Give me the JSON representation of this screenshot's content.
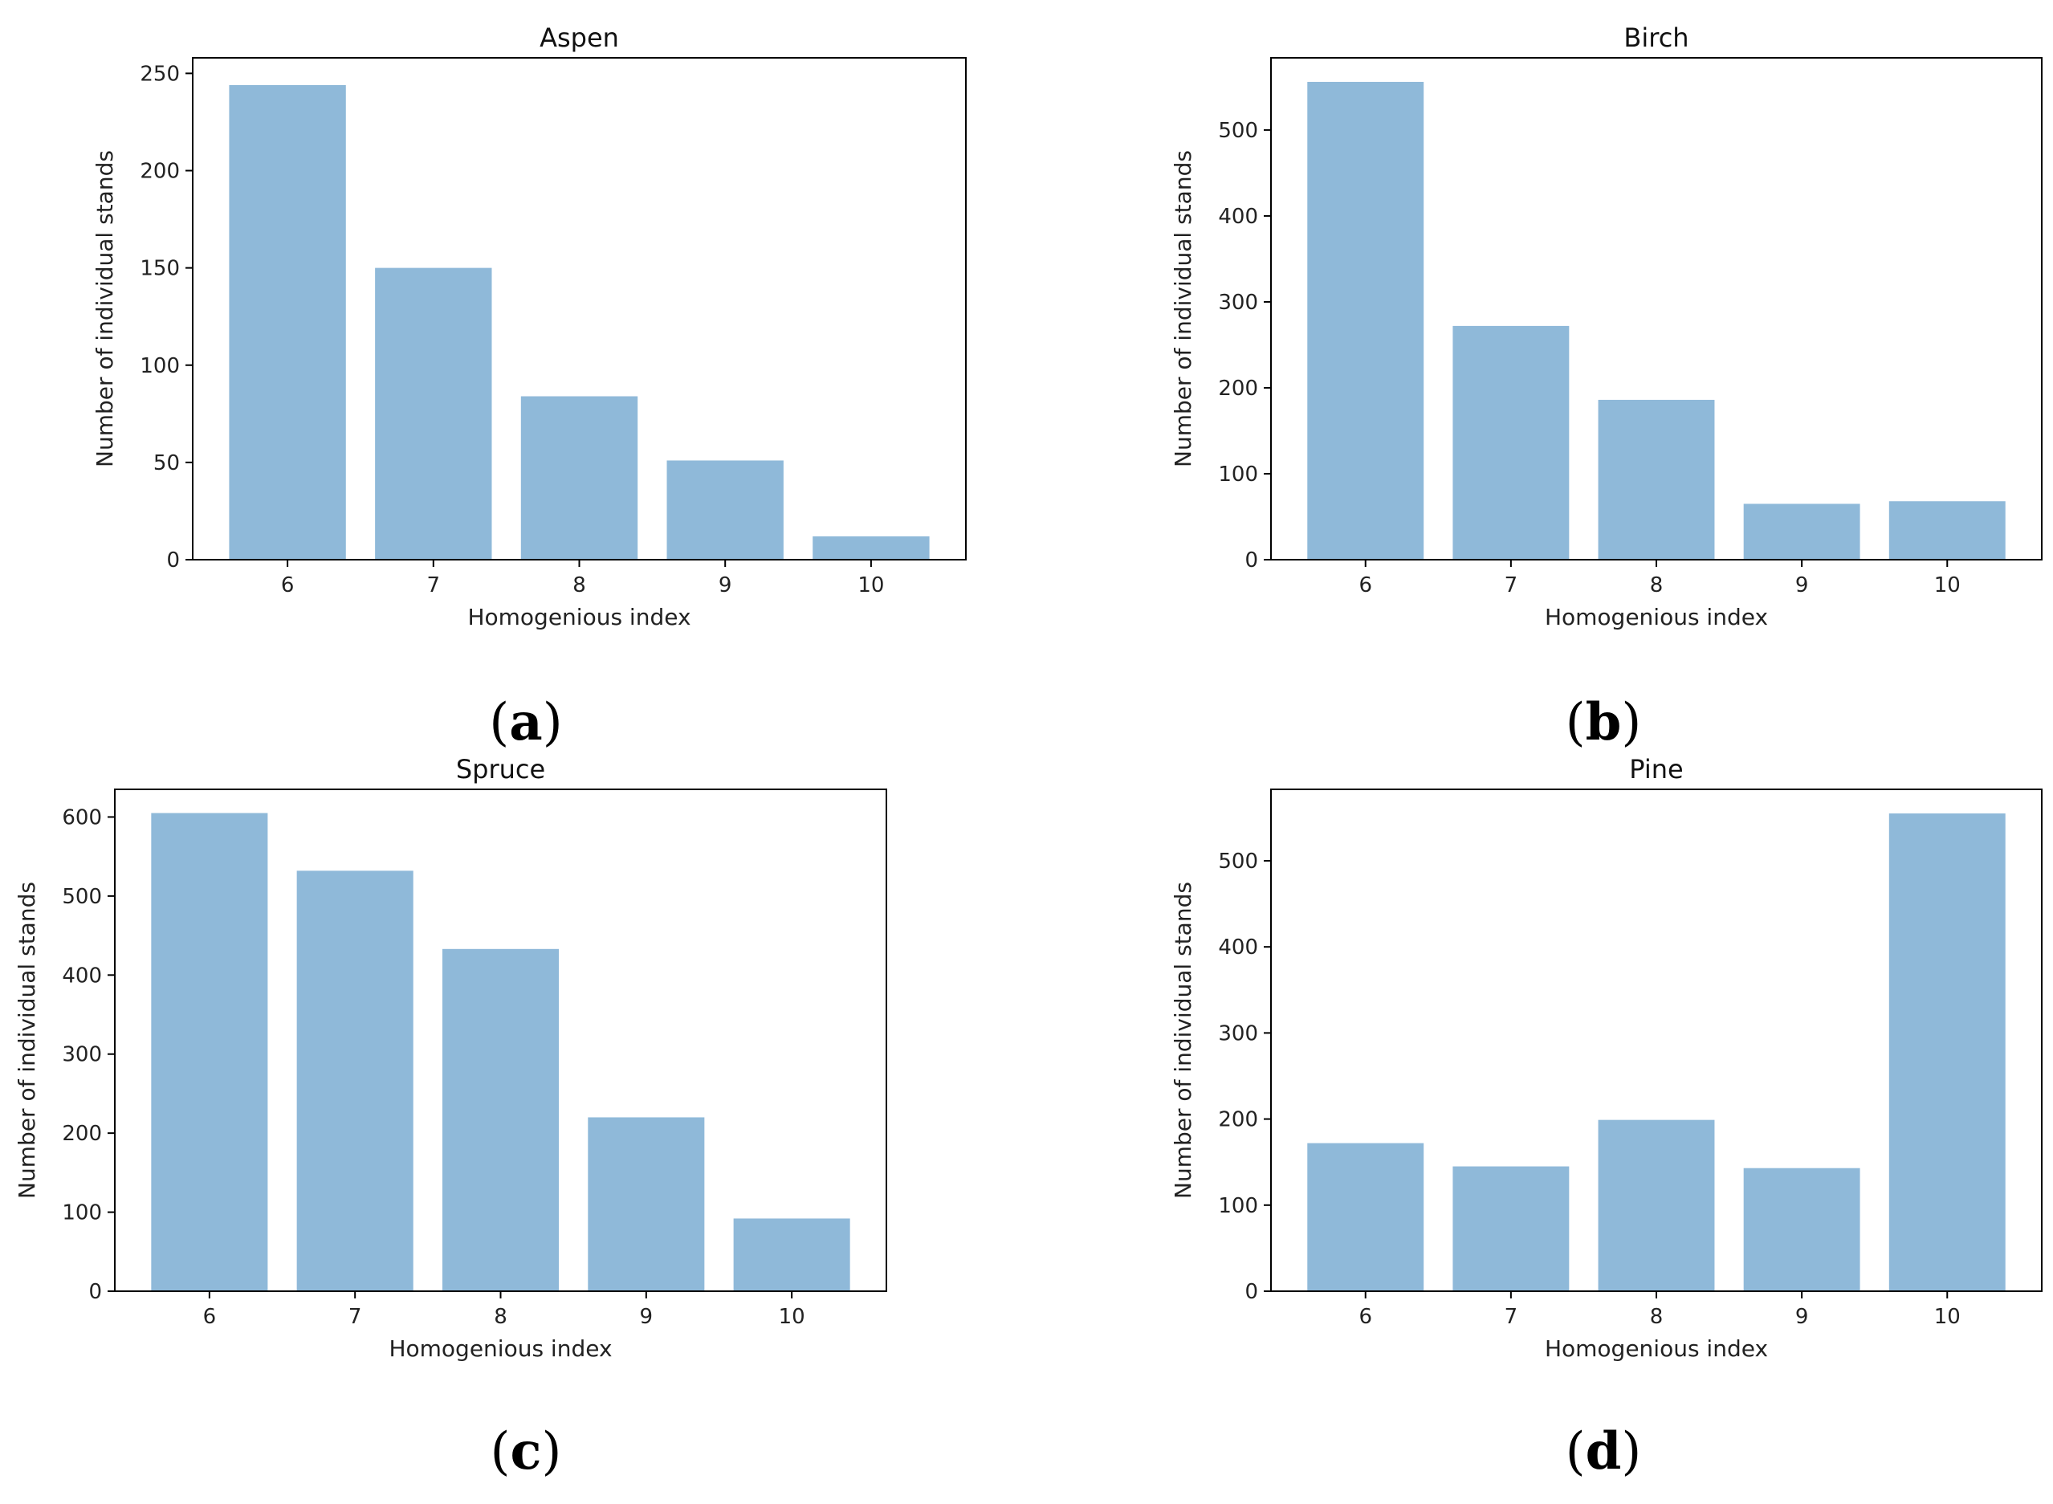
{
  "chart_data": [
    {
      "type": "bar",
      "title": "Aspen",
      "xlabel": "Homogenious index",
      "ylabel": "Number of individual stands",
      "categories": [
        "6",
        "7",
        "8",
        "9",
        "10"
      ],
      "values": [
        244,
        150,
        84,
        51,
        12
      ],
      "ylim": [
        0,
        258
      ],
      "yticks": [
        0,
        50,
        100,
        150,
        200,
        250
      ],
      "caption": "a"
    },
    {
      "type": "bar",
      "title": "Birch",
      "xlabel": "Homogenious index",
      "ylabel": "Number of individual stands",
      "categories": [
        "6",
        "7",
        "8",
        "9",
        "10"
      ],
      "values": [
        556,
        272,
        186,
        65,
        68
      ],
      "ylim": [
        0,
        584
      ],
      "yticks": [
        0,
        100,
        200,
        300,
        400,
        500
      ],
      "caption": "b"
    },
    {
      "type": "bar",
      "title": "Spruce",
      "xlabel": "Homogenious index",
      "ylabel": "Number of individual stands",
      "categories": [
        "6",
        "7",
        "8",
        "9",
        "10"
      ],
      "values": [
        605,
        532,
        433,
        220,
        92
      ],
      "ylim": [
        0,
        635
      ],
      "yticks": [
        0,
        100,
        200,
        300,
        400,
        500,
        600
      ],
      "caption": "c"
    },
    {
      "type": "bar",
      "title": "Pine",
      "xlabel": "Homogenious index",
      "ylabel": "Number of individual stands",
      "categories": [
        "6",
        "7",
        "8",
        "9",
        "10"
      ],
      "values": [
        172,
        145,
        199,
        143,
        555
      ],
      "ylim": [
        0,
        583
      ],
      "yticks": [
        0,
        100,
        200,
        300,
        400,
        500
      ],
      "caption": "d"
    }
  ]
}
